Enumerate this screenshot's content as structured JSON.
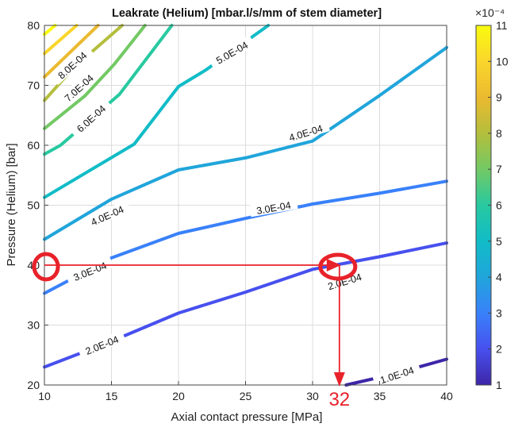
{
  "chart_data": {
    "type": "contour",
    "title": "Leakrate (Helium) [mbar.l/s/mm of stem diameter]",
    "xlabel": "Axial contact pressure [MPa]",
    "ylabel": "Pressure (Helium) [bar]",
    "xlim": [
      10,
      40
    ],
    "ylim": [
      20,
      80
    ],
    "xticks": [
      10,
      15,
      20,
      25,
      30,
      35,
      40
    ],
    "yticks": [
      20,
      30,
      40,
      50,
      60,
      70,
      80
    ],
    "grid": true,
    "colorbar": {
      "range": [
        1,
        11
      ],
      "ticks": [
        1,
        2,
        3,
        4,
        5,
        6,
        7,
        8,
        9,
        10,
        11
      ],
      "exponent_label": "×10⁻⁴",
      "colormap": "parula"
    },
    "series": [
      {
        "level": 1,
        "label": "1.0E-04",
        "points": [
          [
            32.5,
            20
          ],
          [
            36,
            21.8
          ],
          [
            40,
            24.3
          ]
        ]
      },
      {
        "level": 2,
        "label": "2.0E-04",
        "points": [
          [
            10,
            23
          ],
          [
            15,
            27.3
          ],
          [
            20,
            32
          ],
          [
            25,
            35.5
          ],
          [
            30,
            39.3
          ],
          [
            35,
            41.4
          ],
          [
            40,
            43.7
          ]
        ]
      },
      {
        "level": 3,
        "label": "3.0E-04",
        "points": [
          [
            10,
            35.3
          ],
          [
            15,
            41.2
          ],
          [
            20,
            45.3
          ],
          [
            25,
            47.8
          ],
          [
            30,
            50.2
          ],
          [
            35,
            52
          ],
          [
            40,
            54
          ]
        ]
      },
      {
        "level": 4,
        "label": "4.0E-04",
        "points": [
          [
            10,
            44.3
          ],
          [
            15,
            51
          ],
          [
            20,
            55.9
          ],
          [
            25,
            57.9
          ],
          [
            30,
            60.7
          ],
          [
            35,
            68.3
          ],
          [
            40,
            76.3
          ]
        ]
      },
      {
        "level": 5,
        "label": "5.0E-04",
        "points": [
          [
            10,
            51.3
          ],
          [
            16.7,
            60.2
          ],
          [
            20,
            69.8
          ],
          [
            22,
            72.5
          ],
          [
            26.7,
            80
          ]
        ]
      },
      {
        "level": 6,
        "label": "6.0E-04",
        "points": [
          [
            10,
            58.5
          ],
          [
            11.2,
            60
          ],
          [
            15.6,
            68.5
          ],
          [
            19.5,
            80
          ]
        ]
      },
      {
        "level": 7,
        "label": "7.0E-04",
        "points": [
          [
            10,
            62.8
          ],
          [
            13,
            68.2
          ],
          [
            15.2,
            73.5
          ],
          [
            17.5,
            80
          ]
        ]
      },
      {
        "level": 8,
        "label": "8.0E-04",
        "points": [
          [
            10,
            67.5
          ],
          [
            12.2,
            73
          ],
          [
            15.8,
            80
          ]
        ]
      },
      {
        "level": 9,
        "label": "",
        "points": [
          [
            10,
            71.4
          ],
          [
            14,
            80
          ]
        ]
      },
      {
        "level": 10,
        "label": "",
        "points": [
          [
            10,
            75.3
          ],
          [
            12.4,
            80
          ]
        ]
      },
      {
        "level": 11,
        "label": "",
        "points": [
          [
            10,
            78.5
          ],
          [
            10.8,
            80
          ]
        ]
      }
    ],
    "contour_labels": [
      {
        "text": "1.0E-04",
        "x": 36.3,
        "y": 21.6,
        "angle": -18
      },
      {
        "text": "2.0E-04",
        "x": 14.3,
        "y": 26.6,
        "angle": -22
      },
      {
        "text": "2.0E-04",
        "x": 32.4,
        "y": 37.2,
        "angle": -17
      },
      {
        "text": "3.0E-04",
        "x": 13.4,
        "y": 38.9,
        "angle": -22
      },
      {
        "text": "3.0E-04",
        "x": 27.1,
        "y": 49.5,
        "angle": -10
      },
      {
        "text": "4.0E-04",
        "x": 14.7,
        "y": 48.2,
        "angle": -24
      },
      {
        "text": "4.0E-04",
        "x": 29.5,
        "y": 62,
        "angle": -17
      },
      {
        "text": "5.0E-04",
        "x": 24.0,
        "y": 75.4,
        "angle": -30
      },
      {
        "text": "6.0E-04",
        "x": 13.5,
        "y": 64.4,
        "angle": -42
      },
      {
        "text": "7.0E-04",
        "x": 12.6,
        "y": 69.5,
        "angle": -42
      },
      {
        "text": "8.0E-04",
        "x": 12.1,
        "y": 73.3,
        "angle": -42
      }
    ],
    "annotations": {
      "reference_y": 40,
      "reference_x_start": 10,
      "reference_x_end": 32,
      "result_label": "32",
      "color": "#e8222a"
    }
  }
}
